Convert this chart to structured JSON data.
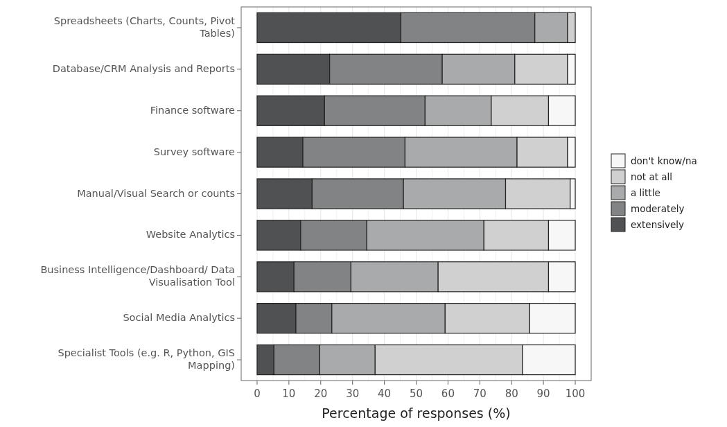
{
  "chart_data": {
    "type": "bar",
    "orientation": "horizontal",
    "stacked": true,
    "xlabel": "Percentage of responses (%)",
    "categories": [
      "Spreadsheets (Charts, Counts, Pivot Tables)",
      "Database/CRM Analysis and Reports",
      "Finance software",
      "Survey software",
      "Manual/Visual Search or counts",
      "Website Analytics",
      "Business Intelligence/Dashboard/ Data Visualisation Tool",
      "Social Media Analytics",
      "Specialist Tools (e.g. R, Python, GIS Mapping)"
    ],
    "series": [
      {
        "name": "extensively",
        "color": "#505153",
        "values": [
          45.2,
          22.8,
          21.2,
          14.4,
          17.3,
          13.7,
          11.6,
          12.2,
          5.3
        ]
      },
      {
        "name": "moderately",
        "color": "#828384",
        "values": [
          42.1,
          35.4,
          31.6,
          32.1,
          28.7,
          20.8,
          17.9,
          11.3,
          14.4
        ]
      },
      {
        "name": "a little",
        "color": "#a9aaab",
        "values": [
          10.3,
          22.8,
          20.8,
          35.2,
          32.1,
          36.8,
          27.4,
          35.6,
          17.4
        ]
      },
      {
        "name": "not at all",
        "color": "#d0d0d0",
        "values": [
          2.4,
          16.6,
          18.0,
          15.9,
          20.3,
          20.3,
          34.7,
          26.6,
          46.3
        ]
      },
      {
        "name": "don't know/na",
        "color": "#f7f7f7",
        "values": [
          0,
          2.4,
          8.4,
          2.4,
          1.6,
          8.4,
          8.4,
          14.3,
          16.6
        ]
      }
    ],
    "xlim": [
      -5,
      105
    ],
    "xticks": [
      0,
      10,
      20,
      30,
      40,
      50,
      60,
      70,
      80,
      90,
      100
    ],
    "grid": "x",
    "legend": "right"
  }
}
